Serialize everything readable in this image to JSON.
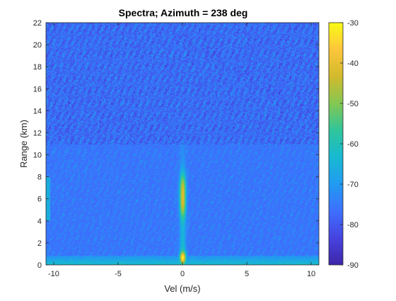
{
  "chart_data": {
    "type": "heatmap",
    "title": "Spectra; Azimuth = 238 deg",
    "xlabel": "Vel (m/s)",
    "ylabel": "Range (km)",
    "xlim": [
      -10.6,
      10.6
    ],
    "ylim": [
      0,
      22
    ],
    "x_ticks": [
      -10,
      -5,
      0,
      5,
      10
    ],
    "x_tick_labels": [
      "-10",
      "-5",
      "0",
      "5",
      "10"
    ],
    "y_ticks": [
      0,
      2,
      4,
      6,
      8,
      10,
      12,
      14,
      16,
      18,
      20,
      22
    ],
    "y_tick_labels": [
      "0",
      "2",
      "4",
      "6",
      "8",
      "10",
      "12",
      "14",
      "16",
      "18",
      "20",
      "22"
    ],
    "colorbar": {
      "colormap": "parula",
      "clim": [
        -90,
        -30
      ],
      "ticks": [
        -90,
        -80,
        -70,
        -60,
        -50,
        -40,
        -30
      ],
      "tick_labels": [
        "-90",
        "-80",
        "-70",
        "-60",
        "-50",
        "-40",
        "-30"
      ]
    },
    "grid": false,
    "features": {
      "background_level_db": -77,
      "zero_velocity_column": {
        "velocity": 0,
        "range_extent_km": [
          0,
          11
        ],
        "peak_db": -35,
        "strongest_ranges_km": [
          0.7,
          5.5,
          7.2
        ]
      },
      "near_range_clutter_band": {
        "range_km": [
          0,
          0.9
        ],
        "level_db": -62
      }
    }
  },
  "colors": {
    "parula_stops": [
      "#3e26a8",
      "#4743e0",
      "#3e6ffe",
      "#219bf1",
      "#17b9d2",
      "#2fc59b",
      "#84c752",
      "#d2ba2c",
      "#fdc53b",
      "#f9fb15"
    ]
  }
}
